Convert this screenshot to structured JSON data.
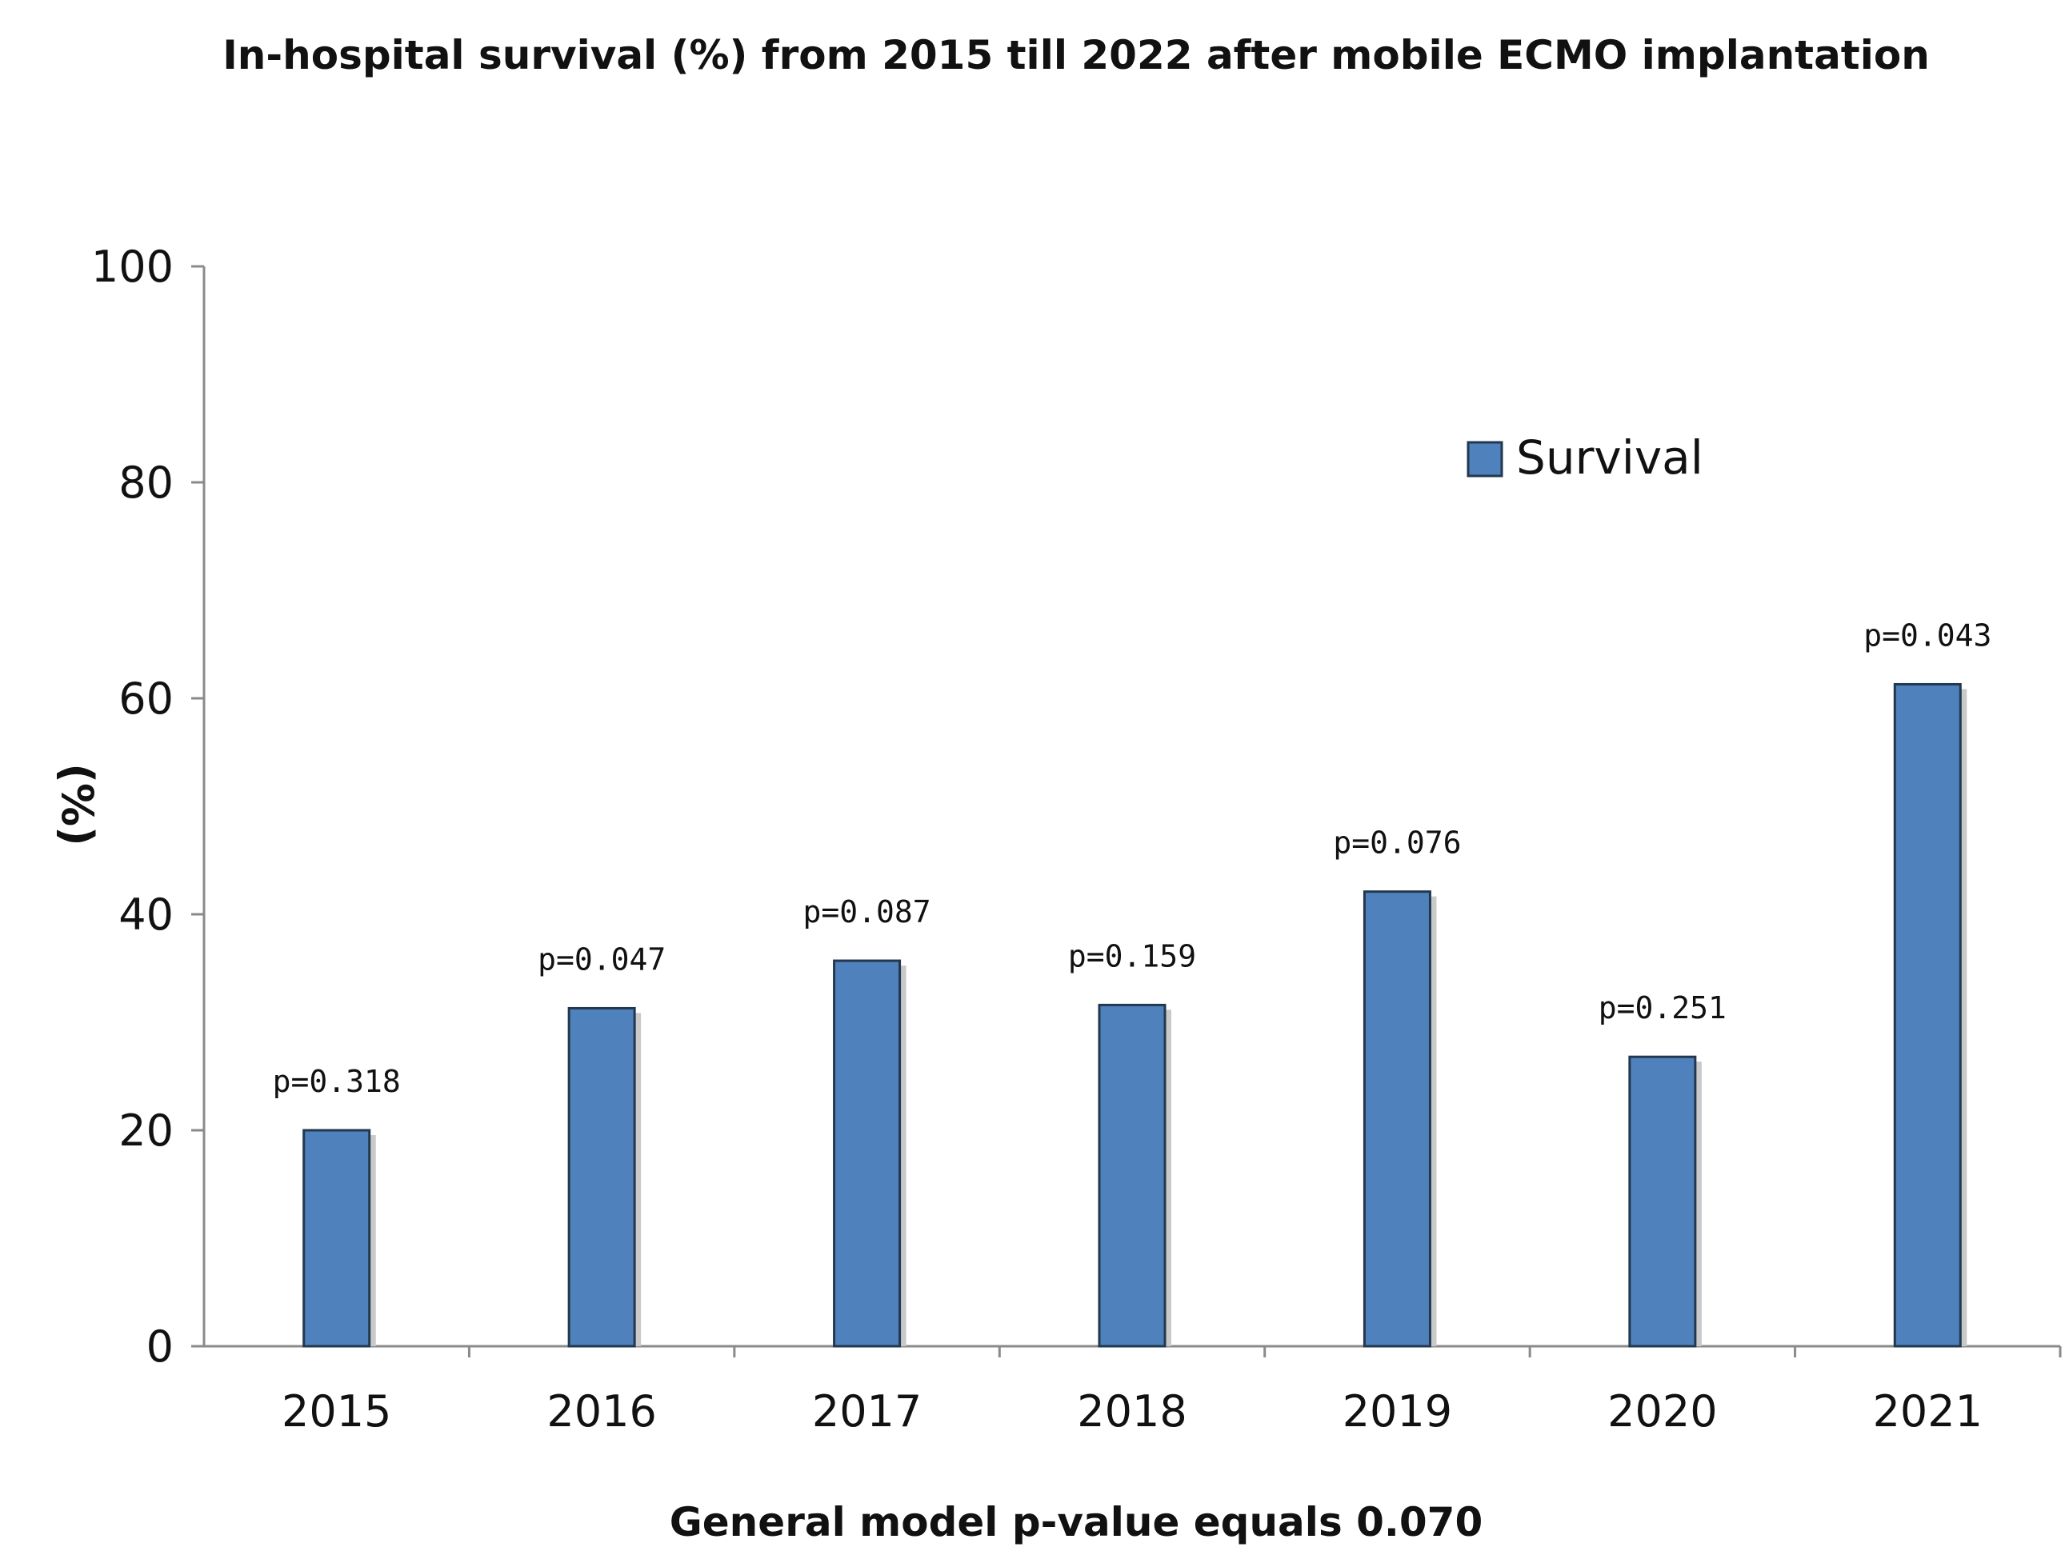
{
  "chart_data": {
    "type": "bar",
    "title": "In-hospital survival (%) from 2015 till 2022 after mobile ECMO implantation",
    "xlabel": "General model  p-value equals 0.070",
    "ylabel": "(%)",
    "ylim": [
      0,
      100
    ],
    "yticks": [
      "0",
      "20",
      "40",
      "60",
      "80",
      "100"
    ],
    "categories": [
      "2015",
      "2016",
      "2017",
      "2018",
      "2019",
      "2020",
      "2021"
    ],
    "series": [
      {
        "name": "Survival",
        "values": [
          20,
          31.3,
          35.7,
          31.6,
          42.1,
          26.8,
          61.3
        ],
        "labels": [
          "p=0.318",
          "p=0.047",
          "p=0.087",
          "p=0.159",
          "p=0.076",
          "p=0.251",
          "p=0.043"
        ],
        "color": "#4f81bd",
        "edge_color": "#22384f",
        "shadow_color": "#c9c9c9"
      }
    ],
    "legend": {
      "position": "upper-right",
      "label": "Survival"
    },
    "grid": false,
    "axis_color": "#8a8a8a"
  }
}
